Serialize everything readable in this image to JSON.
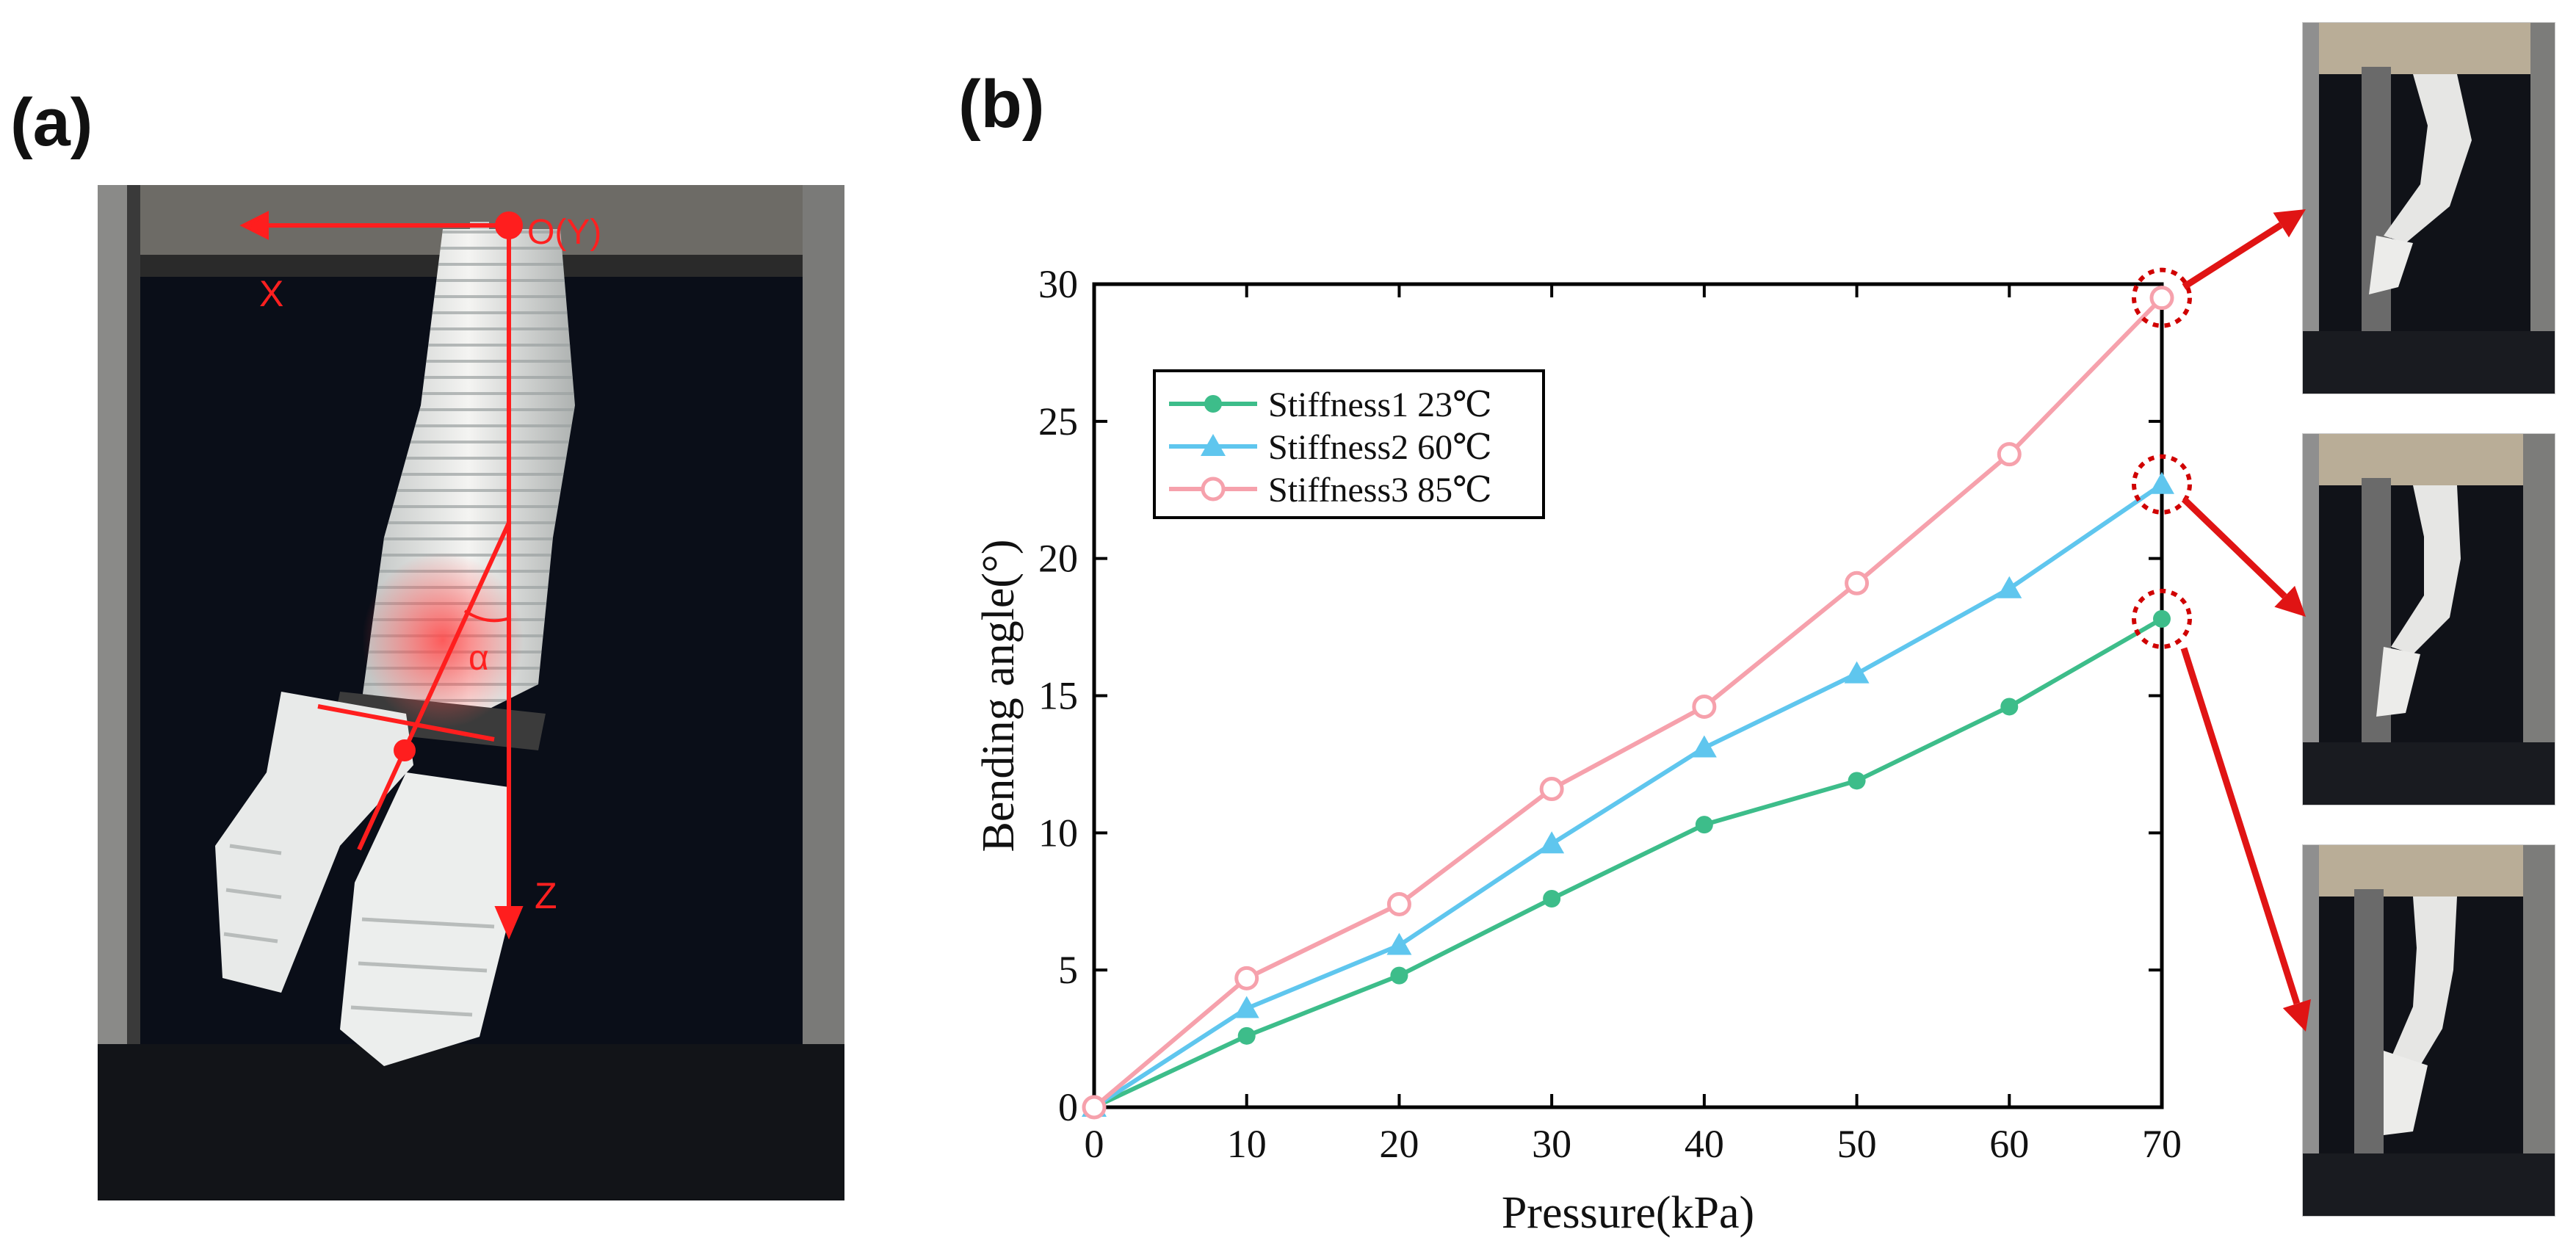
{
  "panels": {
    "a_label": "(a)",
    "b_label": "(b)"
  },
  "photo_a": {
    "origin_label": "O(Y)",
    "x_label": "X",
    "z_label": "Z",
    "angle_label": "α"
  },
  "colors": {
    "series1": "#3dbd8a",
    "series2": "#5fc6ee",
    "series3": "#f6a1ac",
    "arrow": "#e01414",
    "axis": "#000000"
  },
  "chart_data": {
    "type": "line",
    "title": "",
    "xlabel": "Pressure(kPa)",
    "ylabel": "Bending angle(°)",
    "xlim": [
      0,
      70
    ],
    "ylim": [
      0,
      30
    ],
    "xticks": [
      0,
      10,
      20,
      30,
      40,
      50,
      60,
      70
    ],
    "yticks": [
      0,
      5,
      10,
      15,
      20,
      25,
      30
    ],
    "x": [
      0,
      10,
      20,
      30,
      40,
      50,
      60,
      70
    ],
    "legend_position": "top-left",
    "series": [
      {
        "name": "Stiffness1 23℃",
        "marker": "filled-circle",
        "color_key": "series1",
        "values": [
          0,
          2.6,
          4.8,
          7.6,
          10.3,
          11.9,
          14.6,
          17.8
        ]
      },
      {
        "name": "Stiffness2 60℃",
        "marker": "filled-triangle",
        "color_key": "series2",
        "values": [
          0,
          3.6,
          5.9,
          9.6,
          13.1,
          15.8,
          18.9,
          22.7
        ]
      },
      {
        "name": "Stiffness3 85℃",
        "marker": "open-circle",
        "color_key": "series3",
        "values": [
          0,
          4.7,
          7.4,
          11.6,
          14.6,
          19.1,
          23.8,
          29.5
        ]
      }
    ],
    "highlighted_points": [
      {
        "series": "Stiffness3 85℃",
        "x": 70
      },
      {
        "series": "Stiffness2 60℃",
        "x": 70
      },
      {
        "series": "Stiffness1 23℃",
        "x": 70
      }
    ]
  }
}
